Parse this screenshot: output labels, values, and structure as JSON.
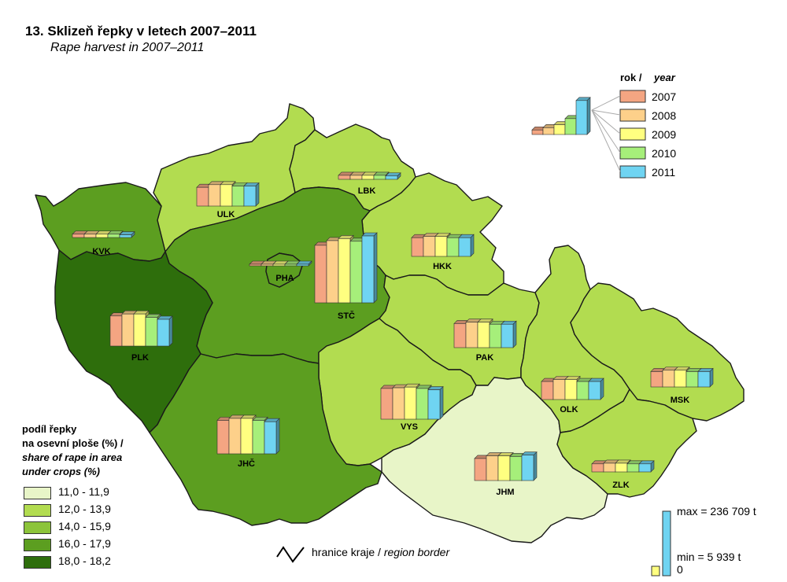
{
  "title": "13. Sklizeň řepky v letech 2007–2011",
  "subtitle": "Rape harvest in 2007–2011",
  "year_legend": {
    "title_cz": "rok /",
    "title_en": "year",
    "years": [
      {
        "label": "2007",
        "color": "#f4a582"
      },
      {
        "label": "2008",
        "color": "#fdd08a"
      },
      {
        "label": "2009",
        "color": "#ffff80"
      },
      {
        "label": "2010",
        "color": "#a6ef7a"
      },
      {
        "label": "2011",
        "color": "#6fd4f2"
      }
    ]
  },
  "share_legend": {
    "title_line1": "podíl řepky",
    "title_line2": "na osevní ploše (%) /",
    "title_line3": "share of rape in area",
    "title_line4": "under crops (%)",
    "classes": [
      {
        "label": "11,0 - 11,9",
        "color": "#e8f5c8"
      },
      {
        "label": "12,0 - 13,9",
        "color": "#b2dc50"
      },
      {
        "label": "14,0 - 15,9",
        "color": "#8cc43a"
      },
      {
        "label": "16,0 - 17,9",
        "color": "#5c9e20"
      },
      {
        "label": "18,0 - 18,2",
        "color": "#2e6e0c"
      }
    ]
  },
  "border_legend": {
    "label_cz": "hranice kraje /",
    "label_en": "region border"
  },
  "scale_legend": {
    "max_label": "max = 236 709 t",
    "min_label": "min = 5 939 t",
    "zero_label": "0"
  },
  "regions": [
    {
      "code": "ULK",
      "class": 1,
      "bars": [
        0.28,
        0.32,
        0.32,
        0.3,
        0.3
      ]
    },
    {
      "code": "LBK",
      "class": 1,
      "bars": [
        0.06,
        0.06,
        0.06,
        0.06,
        0.05
      ]
    },
    {
      "code": "KVK",
      "class": 3,
      "bars": [
        0.05,
        0.05,
        0.05,
        0.05,
        0.04
      ]
    },
    {
      "code": "HKK",
      "class": 1,
      "bars": [
        0.28,
        0.3,
        0.3,
        0.28,
        0.28
      ]
    },
    {
      "code": "PHA",
      "class": 3,
      "bars": [
        0.02,
        0.02,
        0.02,
        0.02,
        0.02
      ]
    },
    {
      "code": "STČ",
      "class": 3,
      "bars": [
        0.86,
        0.93,
        0.96,
        0.92,
        1.0
      ]
    },
    {
      "code": "PLK",
      "class": 4,
      "bars": [
        0.45,
        0.48,
        0.48,
        0.43,
        0.4
      ]
    },
    {
      "code": "PAK",
      "class": 1,
      "bars": [
        0.36,
        0.38,
        0.38,
        0.35,
        0.35
      ]
    },
    {
      "code": "VYS",
      "class": 1,
      "bars": [
        0.46,
        0.47,
        0.48,
        0.46,
        0.44
      ]
    },
    {
      "code": "JHČ",
      "class": 3,
      "bars": [
        0.5,
        0.53,
        0.53,
        0.5,
        0.48
      ]
    },
    {
      "code": "JHM",
      "class": 0,
      "bars": [
        0.33,
        0.37,
        0.37,
        0.36,
        0.38
      ]
    },
    {
      "code": "OLK",
      "class": 1,
      "bars": [
        0.27,
        0.3,
        0.3,
        0.27,
        0.27
      ]
    },
    {
      "code": "MSK",
      "class": 1,
      "bars": [
        0.23,
        0.25,
        0.25,
        0.23,
        0.23
      ]
    },
    {
      "code": "ZLK",
      "class": 1,
      "bars": [
        0.12,
        0.13,
        0.13,
        0.12,
        0.12
      ]
    }
  ]
}
